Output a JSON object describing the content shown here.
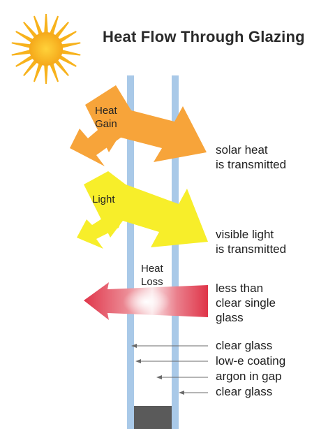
{
  "title": "Heat Flow Through Glazing",
  "arrows": {
    "heat_gain": {
      "label_line1": "Heat",
      "label_line2": "Gain",
      "color": "#f7a43a"
    },
    "light": {
      "label": "Light",
      "color": "#f7ee2a"
    },
    "heat_loss": {
      "label_line1": "Heat",
      "label_line2": "Loss",
      "color": "#e2364a"
    }
  },
  "annotations": {
    "solar_heat": {
      "line1": "solar heat",
      "line2": "is transmitted"
    },
    "visible_light": {
      "line1": "visible light",
      "line2": "is transmitted"
    },
    "heat_loss": {
      "line1": "less than",
      "line2": "clear single",
      "line3": "glass"
    }
  },
  "legend": {
    "items": [
      "clear glass",
      "low-e coating",
      "argon in gap",
      "clear glass"
    ]
  },
  "colors": {
    "sun": "#f7b21c",
    "glass": "#a9c9e8",
    "frame": "#5a5a5a",
    "leader": "#6b6b6b"
  }
}
